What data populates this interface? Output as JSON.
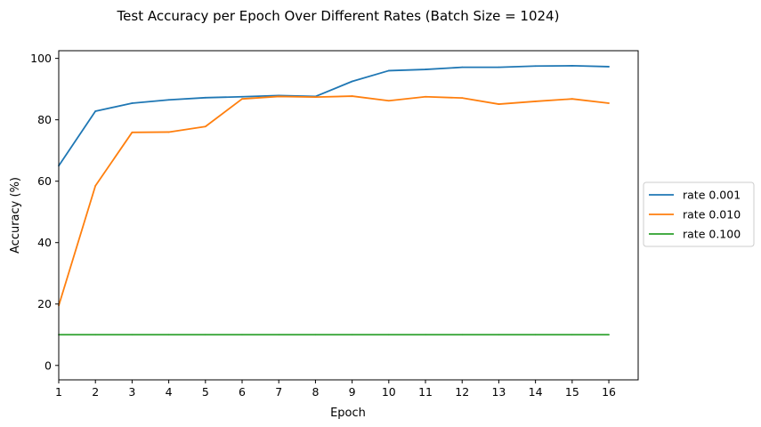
{
  "chart_data": {
    "type": "line",
    "title": "Test Accuracy per Epoch Over Different Rates (Batch Size = 1024)",
    "xlabel": "Epoch",
    "ylabel": "Accuracy (%)",
    "x": [
      1,
      2,
      3,
      4,
      5,
      6,
      7,
      8,
      9,
      10,
      11,
      12,
      13,
      14,
      15,
      16
    ],
    "xlim": [
      1,
      16.8
    ],
    "ylim": [
      -4.7,
      102.5
    ],
    "xticks": [
      1,
      2,
      3,
      4,
      5,
      6,
      7,
      8,
      9,
      10,
      11,
      12,
      13,
      14,
      15,
      16
    ],
    "yticks": [
      0,
      20,
      40,
      60,
      80,
      100
    ],
    "grid": false,
    "legend_position": "right",
    "series": [
      {
        "name": "rate 0.001",
        "color": "#1f77b4",
        "values": [
          65.0,
          82.8,
          85.4,
          86.5,
          87.2,
          87.5,
          87.9,
          87.6,
          92.5,
          96.0,
          96.4,
          97.1,
          97.1,
          97.5,
          97.6,
          97.3
        ]
      },
      {
        "name": "rate 0.010",
        "color": "#ff7f0e",
        "values": [
          19.5,
          58.5,
          75.9,
          76.0,
          77.8,
          86.8,
          87.6,
          87.4,
          87.7,
          86.2,
          87.5,
          87.1,
          85.1,
          86.0,
          86.8,
          85.4
        ]
      },
      {
        "name": "rate 0.100",
        "color": "#2ca02c",
        "values": [
          10.0,
          10.0,
          10.0,
          10.0,
          10.0,
          10.0,
          10.0,
          10.0,
          10.0,
          10.0,
          10.0,
          10.0,
          10.0,
          10.0,
          10.0,
          10.0
        ]
      }
    ]
  }
}
